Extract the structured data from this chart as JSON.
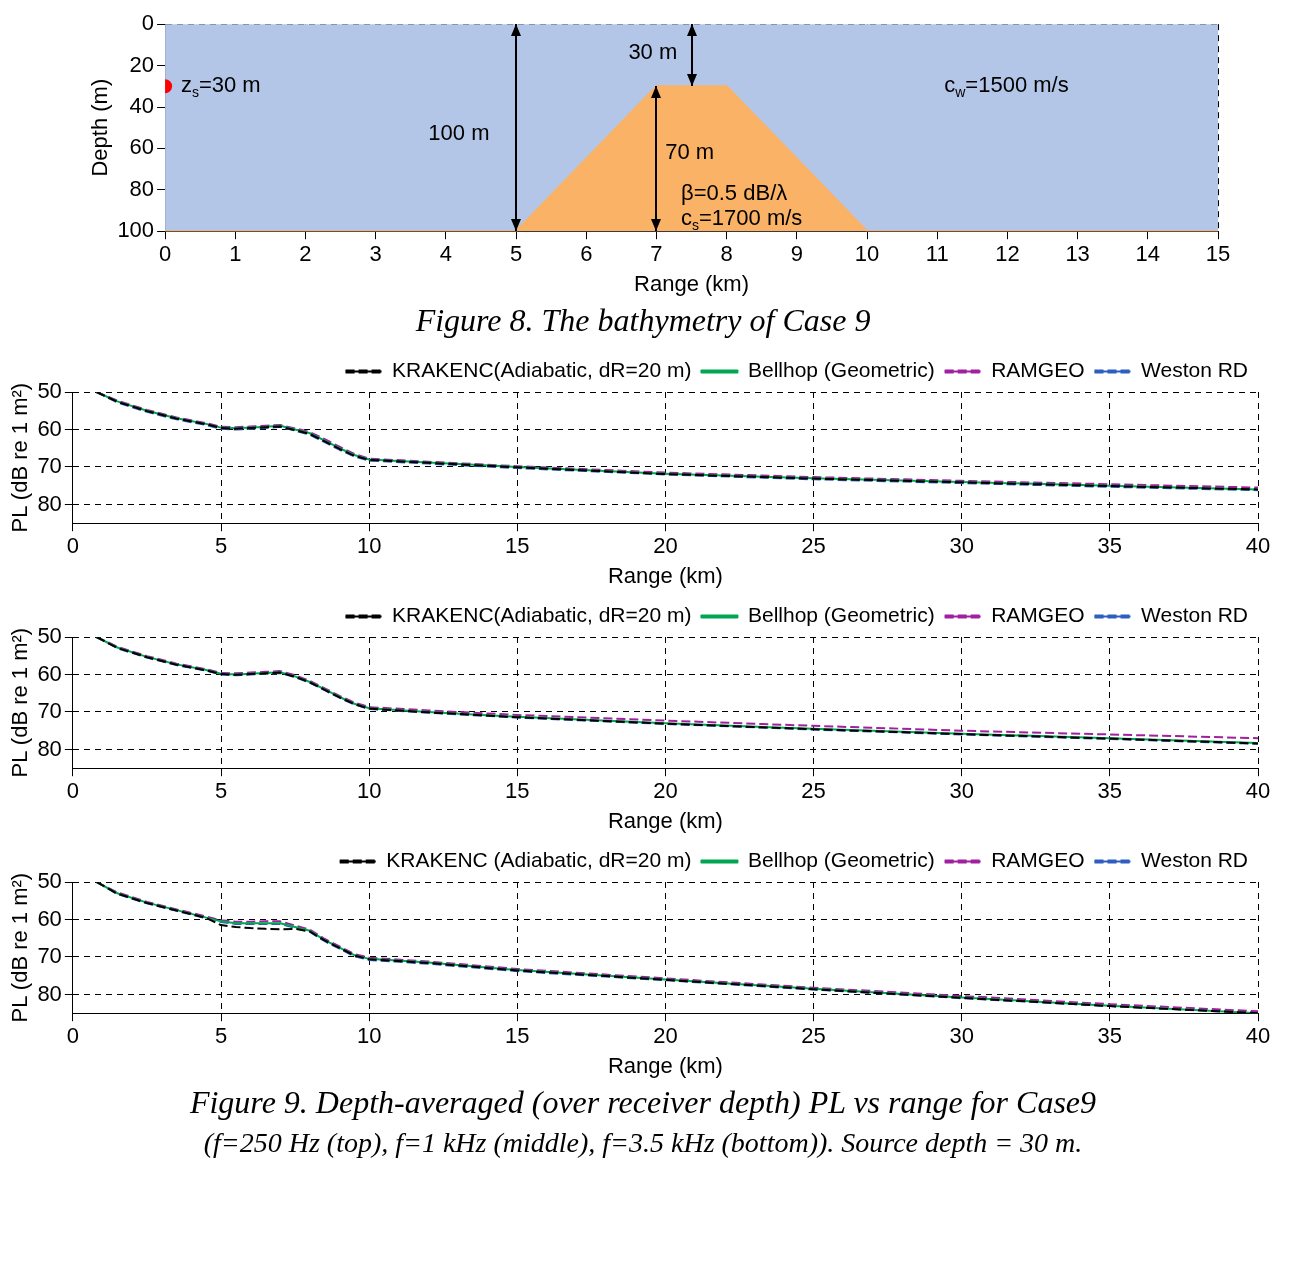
{
  "chart_data": [
    {
      "type": "area",
      "xlabel": "Range (km)",
      "ylabel": "Depth (m)",
      "xlim": [
        0,
        15
      ],
      "ylim": [
        100,
        0
      ],
      "xticks": [
        0,
        1,
        2,
        3,
        4,
        5,
        6,
        7,
        8,
        9,
        10,
        11,
        12,
        13,
        14,
        15
      ],
      "yticks": [
        0,
        20,
        40,
        60,
        80,
        100
      ],
      "grid": true,
      "bands": [
        {
          "axis": "y",
          "from": 0,
          "to": 100,
          "color": "#b4c6e7"
        }
      ],
      "series": [
        {
          "type": "area",
          "color": "#f9b266",
          "x": [
            0,
            5,
            7,
            8,
            10,
            15
          ],
          "values": [
            100,
            100,
            30,
            30,
            100,
            100
          ]
        },
        {
          "type": "scatter",
          "color": "#ff0000",
          "marker": "circle",
          "x": [
            0
          ],
          "values": [
            30
          ]
        }
      ],
      "annotations": [
        "z$_{s}$=30 m",
        "30 m",
        "100 m",
        "70 m",
        "β=0.5 dB/λ",
        "c$_{s}$=1700 m/s",
        "c$_{w}$=1500 m/s",
        "Figure 8. The bathymetry of Case 9"
      ]
    },
    {
      "type": "line",
      "xlabel": "Range (km)",
      "ylabel": "PL (dB re 1 m²)",
      "xlim": [
        0,
        40
      ],
      "ylim": [
        85,
        50
      ],
      "xticks": [
        0,
        5,
        10,
        15,
        20,
        25,
        30,
        35,
        40
      ],
      "yticks": [
        50,
        60,
        70,
        80
      ],
      "grid": true,
      "legend": "top right",
      "x": [
        0.8,
        1.5,
        2.5,
        3.5,
        4.5,
        5,
        5.5,
        6,
        6.5,
        7,
        7.5,
        8,
        8.5,
        9,
        9.5,
        10,
        12,
        15,
        20,
        25,
        30,
        35,
        40
      ],
      "series": [
        {
          "name": "KRAKENC(Adiabatic, dR=20 m)",
          "color": "#000000",
          "line_style": "dashed",
          "values": [
            50,
            52.6,
            55.1,
            57.1,
            58.6,
            59.6,
            59.8,
            59.6,
            59.4,
            59.2,
            60.2,
            61.2,
            63.2,
            65.2,
            67,
            68.1,
            68.9,
            70.1,
            71.9,
            73.1,
            74.1,
            75.1,
            76
          ]
        },
        {
          "name": "Bellhop (Geometric)",
          "color": "#00a651",
          "line_style": "solid",
          "values": [
            50,
            52.5,
            55,
            57,
            58.5,
            59.5,
            59.7,
            59.5,
            59.3,
            59,
            60,
            61,
            63,
            65,
            66.8,
            68,
            68.8,
            70,
            71.8,
            73,
            74,
            75,
            76
          ]
        },
        {
          "name": "RAMGEO",
          "color": "#a020a0",
          "line_style": "dashed",
          "values": [
            50,
            52.3,
            54.8,
            56.8,
            58.3,
            59.3,
            59.4,
            59.2,
            59,
            58.8,
            59.7,
            60.7,
            62.6,
            64.6,
            66.5,
            67.8,
            68.6,
            69.8,
            71.5,
            72.7,
            73.7,
            74.6,
            75.5
          ]
        },
        {
          "name": "Weston RD",
          "color": "#2e5ebf",
          "line_style": "dashed",
          "values": [
            50,
            52.8,
            55.3,
            57.3,
            58.8,
            59.8,
            60,
            59.8,
            59.6,
            59.3,
            60.3,
            61.4,
            63.4,
            65.4,
            67.2,
            68.3,
            69.1,
            70.3,
            72,
            73.3,
            74.3,
            75.3,
            76.2
          ]
        }
      ]
    },
    {
      "type": "line",
      "xlabel": "Range (km)",
      "ylabel": "PL (dB re 1 m²)",
      "xlim": [
        0,
        40
      ],
      "ylim": [
        85,
        50
      ],
      "xticks": [
        0,
        5,
        10,
        15,
        20,
        25,
        30,
        35,
        40
      ],
      "yticks": [
        50,
        60,
        70,
        80
      ],
      "grid": true,
      "legend": "top right",
      "x": [
        0.8,
        1.5,
        2.5,
        3.5,
        4.5,
        5,
        5.5,
        6,
        6.5,
        7,
        7.5,
        8,
        8.5,
        9,
        9.5,
        10,
        12,
        15,
        20,
        25,
        30,
        35,
        40
      ],
      "series": [
        {
          "name": "KRAKENC(Adiabatic, dR=20 m)",
          "color": "#000000",
          "line_style": "dashed",
          "values": [
            50,
            52.9,
            55.4,
            57.4,
            58.9,
            59.9,
            60.1,
            59.9,
            59.7,
            59.5,
            60.6,
            62.1,
            64.1,
            66.1,
            67.9,
            69.1,
            70.1,
            71.4,
            73.1,
            74.6,
            75.9,
            77.1,
            78.4
          ]
        },
        {
          "name": "Bellhop (Geometric)",
          "color": "#00a651",
          "line_style": "solid",
          "values": [
            50,
            52.8,
            55.3,
            57.3,
            58.8,
            59.8,
            60,
            59.8,
            59.6,
            59.4,
            60.5,
            62,
            64,
            66,
            67.8,
            69,
            70,
            71.3,
            73,
            74.5,
            75.8,
            77,
            78.3
          ]
        },
        {
          "name": "RAMGEO",
          "color": "#a020a0",
          "line_style": "dashed",
          "values": [
            50,
            52.6,
            55.1,
            57.1,
            58.6,
            59.6,
            59.7,
            59.5,
            59.3,
            59.1,
            60.2,
            61.7,
            63.7,
            65.7,
            67.5,
            68.7,
            69.6,
            70.8,
            72.3,
            73.7,
            75,
            76,
            77
          ]
        },
        {
          "name": "Weston RD",
          "color": "#2e5ebf",
          "line_style": "dashed",
          "values": [
            50,
            53,
            55.5,
            57.5,
            59,
            60,
            60.2,
            60,
            59.8,
            59.6,
            60.7,
            62.2,
            64.2,
            66.2,
            68,
            69.2,
            70.2,
            71.5,
            73.2,
            74.7,
            76,
            77.2,
            78.5
          ]
        }
      ]
    },
    {
      "type": "line",
      "xlabel": "Range (km)",
      "ylabel": "PL (dB re 1 m²)",
      "xlim": [
        0,
        40
      ],
      "ylim": [
        85,
        50
      ],
      "xticks": [
        0,
        5,
        10,
        15,
        20,
        25,
        30,
        35,
        40
      ],
      "yticks": [
        50,
        60,
        70,
        80
      ],
      "grid": true,
      "legend": "top right",
      "x": [
        0.8,
        1.5,
        2.5,
        3.5,
        4.5,
        5,
        5.5,
        6,
        6.5,
        7,
        7.5,
        8,
        8.5,
        9,
        9.5,
        10,
        12,
        15,
        20,
        25,
        30,
        35,
        40
      ],
      "series": [
        {
          "name": "KRAKENC (Adiabatic, dR=20 m)",
          "color": "#000000",
          "line_style": "dashed",
          "values": [
            50,
            53.1,
            55.6,
            57.6,
            59.6,
            61.5,
            62,
            62.3,
            62.5,
            62.6,
            62.5,
            63.2,
            65.6,
            67.6,
            69.6,
            70.6,
            71.6,
            73.6,
            76.1,
            78.6,
            80.9,
            83.1,
            85
          ]
        },
        {
          "name": "Bellhop (Geometric)",
          "color": "#00a651",
          "line_style": "solid",
          "values": [
            50,
            53,
            55.5,
            57.5,
            59.5,
            60.5,
            61,
            61,
            61,
            61,
            62,
            63,
            65.5,
            67.5,
            69.5,
            70.5,
            71.5,
            73.5,
            76,
            78.5,
            80.8,
            83,
            85
          ]
        },
        {
          "name": "RAMGEO",
          "color": "#a020a0",
          "line_style": "dashed",
          "values": [
            50,
            52.8,
            55.3,
            57.3,
            59.2,
            60.2,
            60.6,
            60.6,
            60.5,
            60.5,
            61.6,
            62.7,
            65.2,
            67.2,
            69.2,
            70.2,
            71.2,
            73.2,
            75.7,
            78.2,
            80.4,
            82.6,
            84.5
          ]
        },
        {
          "name": "Weston RD",
          "color": "#2e5ebf",
          "line_style": "dashed",
          "values": [
            50,
            53.2,
            55.7,
            57.7,
            59.7,
            60.7,
            61.2,
            61.2,
            61.2,
            61.2,
            62.2,
            63.3,
            65.8,
            67.8,
            69.8,
            70.8,
            71.8,
            73.8,
            76.2,
            78.7,
            81,
            83.1,
            85
          ]
        }
      ],
      "annotations": [
        "Figure 9. Depth-averaged (over receiver depth) PL vs range for Case9",
        "(f=250 Hz (top), f=1 kHz (middle), f=3.5 kHz (bottom)). Source depth = 30 m."
      ]
    }
  ]
}
